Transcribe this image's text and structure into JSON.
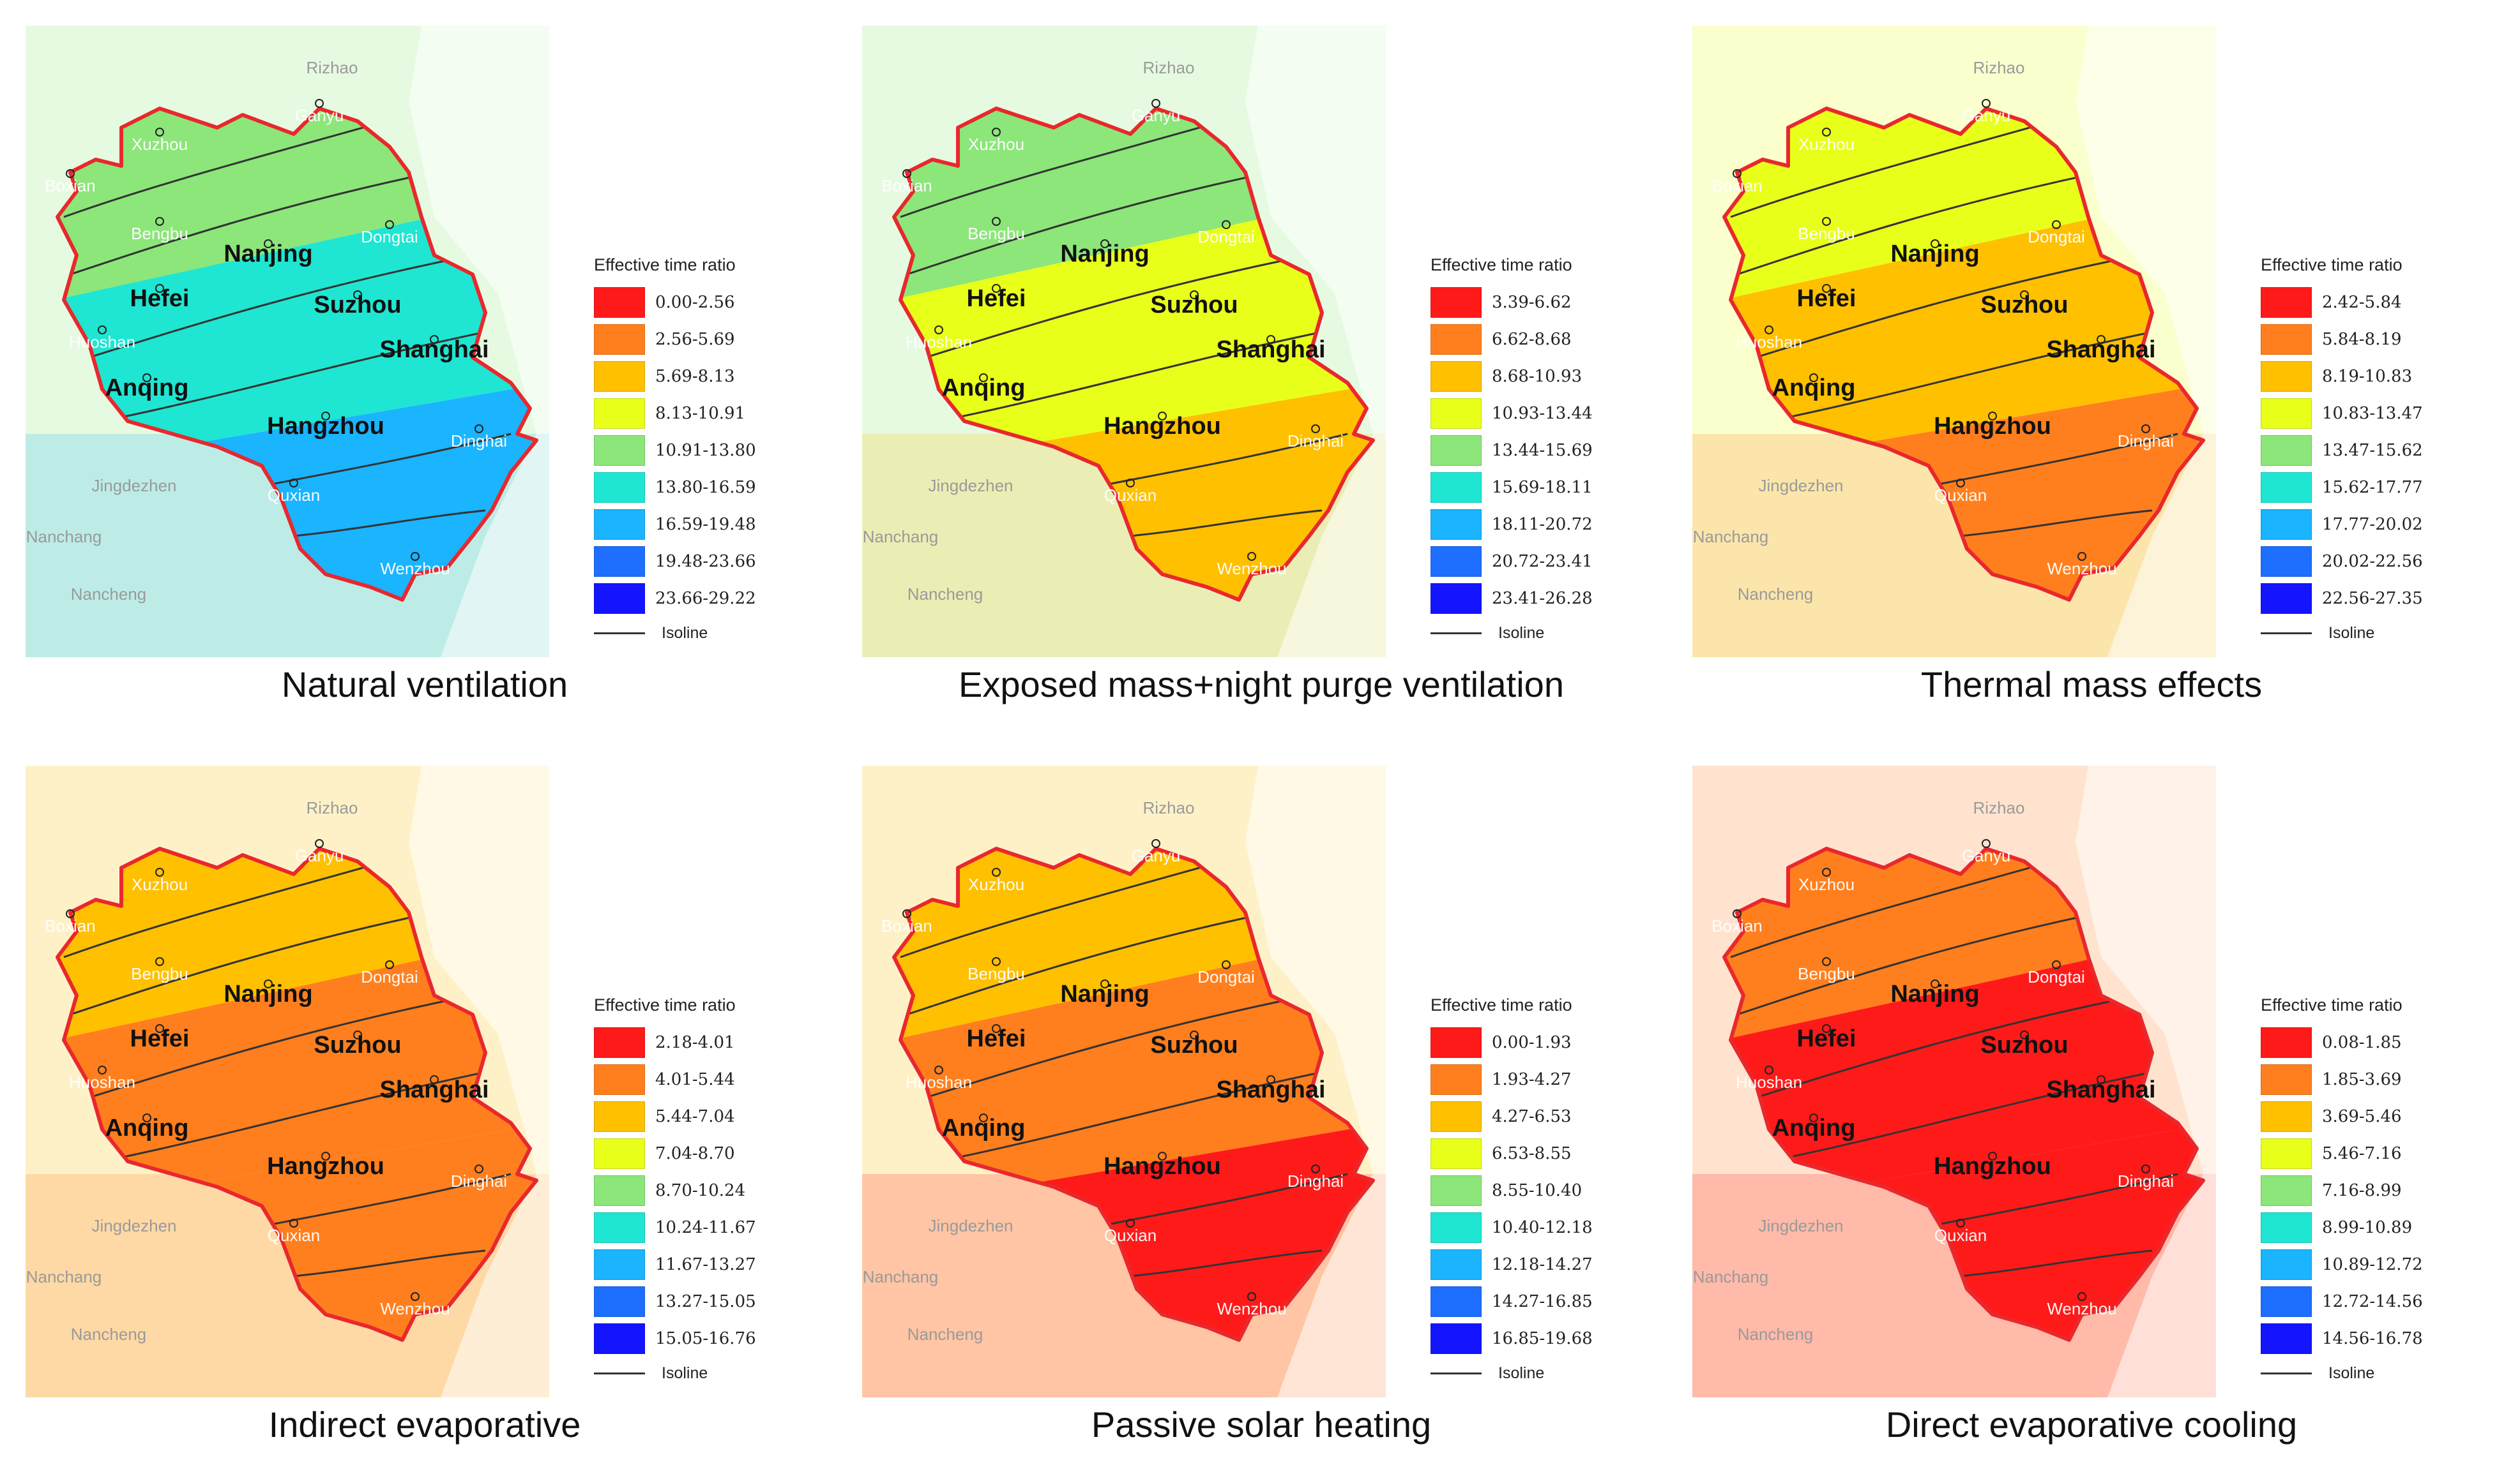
{
  "colors": {
    "region_outline": "#e8282d",
    "isoline": "#333333",
    "city_dot": "#222222"
  },
  "panels": [
    {
      "id": "natural-ventilation",
      "caption": "Natural ventilation",
      "legend_title": "Effective time ratio",
      "isoline_label": "Isoline",
      "legend": [
        {
          "range": "0.00-2.56",
          "color": "#ff1a1a"
        },
        {
          "range": "2.56-5.69",
          "color": "#ff7f1e"
        },
        {
          "range": "5.69-8.13",
          "color": "#ffc000"
        },
        {
          "range": "8.13-10.91",
          "color": "#e8ff1a"
        },
        {
          "range": "10.91-13.80",
          "color": "#8ce67a"
        },
        {
          "range": "13.80-16.59",
          "color": "#1ee6d2"
        },
        {
          "range": "16.59-19.48",
          "color": "#1ab4ff"
        },
        {
          "range": "19.48-23.66",
          "color": "#1e6eff"
        },
        {
          "range": "23.66-29.22",
          "color": "#1414ff"
        }
      ],
      "zones": [
        "#8ce67a",
        "#1ee6d2",
        "#1ab4ff"
      ]
    },
    {
      "id": "exposed-mass-night-purge",
      "caption": "Exposed mass+night purge ventilation",
      "legend_title": "Effective time ratio",
      "isoline_label": "Isoline",
      "legend": [
        {
          "range": "3.39-6.62",
          "color": "#ff1a1a"
        },
        {
          "range": "6.62-8.68",
          "color": "#ff7f1e"
        },
        {
          "range": "8.68-10.93",
          "color": "#ffc000"
        },
        {
          "range": "10.93-13.44",
          "color": "#e8ff1a"
        },
        {
          "range": "13.44-15.69",
          "color": "#8ce67a"
        },
        {
          "range": "15.69-18.11",
          "color": "#1ee6d2"
        },
        {
          "range": "18.11-20.72",
          "color": "#1ab4ff"
        },
        {
          "range": "20.72-23.41",
          "color": "#1e6eff"
        },
        {
          "range": "23.41-26.28",
          "color": "#1414ff"
        }
      ],
      "zones": [
        "#8ce67a",
        "#e8ff1a",
        "#ffc000"
      ]
    },
    {
      "id": "thermal-mass-effects",
      "caption": "Thermal mass effects",
      "legend_title": "Effective time ratio",
      "isoline_label": "Isoline",
      "legend": [
        {
          "range": "2.42-5.84",
          "color": "#ff1a1a"
        },
        {
          "range": "5.84-8.19",
          "color": "#ff7f1e"
        },
        {
          "range": "8.19-10.83",
          "color": "#ffc000"
        },
        {
          "range": "10.83-13.47",
          "color": "#e8ff1a"
        },
        {
          "range": "13.47-15.62",
          "color": "#8ce67a"
        },
        {
          "range": "15.62-17.77",
          "color": "#1ee6d2"
        },
        {
          "range": "17.77-20.02",
          "color": "#1ab4ff"
        },
        {
          "range": "20.02-22.56",
          "color": "#1e6eff"
        },
        {
          "range": "22.56-27.35",
          "color": "#1414ff"
        }
      ],
      "zones": [
        "#e8ff1a",
        "#ffc000",
        "#ff7f1e"
      ]
    },
    {
      "id": "indirect-evaporative",
      "caption": "Indirect evaporative",
      "legend_title": "Effective time ratio",
      "isoline_label": "Isoline",
      "legend": [
        {
          "range": "2.18-4.01",
          "color": "#ff1a1a"
        },
        {
          "range": "4.01-5.44",
          "color": "#ff7f1e"
        },
        {
          "range": "5.44-7.04",
          "color": "#ffc000"
        },
        {
          "range": "7.04-8.70",
          "color": "#e8ff1a"
        },
        {
          "range": "8.70-10.24",
          "color": "#8ce67a"
        },
        {
          "range": "10.24-11.67",
          "color": "#1ee6d2"
        },
        {
          "range": "11.67-13.27",
          "color": "#1ab4ff"
        },
        {
          "range": "13.27-15.05",
          "color": "#1e6eff"
        },
        {
          "range": "15.05-16.76",
          "color": "#1414ff"
        }
      ],
      "zones": [
        "#ffc000",
        "#ff7f1e",
        "#ff7f1e"
      ]
    },
    {
      "id": "passive-solar-heating",
      "caption": "Passive solar heating",
      "legend_title": "Effective time ratio",
      "isoline_label": "Isoline",
      "legend": [
        {
          "range": "0.00-1.93",
          "color": "#ff1a1a"
        },
        {
          "range": "1.93-4.27",
          "color": "#ff7f1e"
        },
        {
          "range": "4.27-6.53",
          "color": "#ffc000"
        },
        {
          "range": "6.53-8.55",
          "color": "#e8ff1a"
        },
        {
          "range": "8.55-10.40",
          "color": "#8ce67a"
        },
        {
          "range": "10.40-12.18",
          "color": "#1ee6d2"
        },
        {
          "range": "12.18-14.27",
          "color": "#1ab4ff"
        },
        {
          "range": "14.27-16.85",
          "color": "#1e6eff"
        },
        {
          "range": "16.85-19.68",
          "color": "#1414ff"
        }
      ],
      "zones": [
        "#ffc000",
        "#ff7f1e",
        "#ff1a1a"
      ]
    },
    {
      "id": "direct-evaporative-cooling",
      "caption": "Direct evaporative cooling",
      "legend_title": "Effective time ratio",
      "isoline_label": "Isoline",
      "legend": [
        {
          "range": "0.08-1.85",
          "color": "#ff1a1a"
        },
        {
          "range": "1.85-3.69",
          "color": "#ff7f1e"
        },
        {
          "range": "3.69-5.46",
          "color": "#ffc000"
        },
        {
          "range": "5.46-7.16",
          "color": "#e8ff1a"
        },
        {
          "range": "7.16-8.99",
          "color": "#8ce67a"
        },
        {
          "range": "8.99-10.89",
          "color": "#1ee6d2"
        },
        {
          "range": "10.89-12.72",
          "color": "#1ab4ff"
        },
        {
          "range": "12.72-14.56",
          "color": "#1e6eff"
        },
        {
          "range": "14.56-16.78",
          "color": "#1414ff"
        }
      ],
      "zones": [
        "#ff7f1e",
        "#ff1a1a",
        "#ff1a1a"
      ]
    }
  ],
  "cities": {
    "major": [
      "Nanjing",
      "Hefei",
      "Suzhou",
      "Shanghai",
      "Anqing",
      "Hangzhou"
    ],
    "minor": [
      "Xuzhou",
      "Ganyu",
      "Boxian",
      "Bengbu",
      "Dongtai",
      "Huoshan",
      "Dinghai",
      "Quxian",
      "Wenzhou"
    ],
    "outside": [
      "Rizhao",
      "Jingdezhen",
      "Nanchang",
      "Nancheng"
    ]
  }
}
